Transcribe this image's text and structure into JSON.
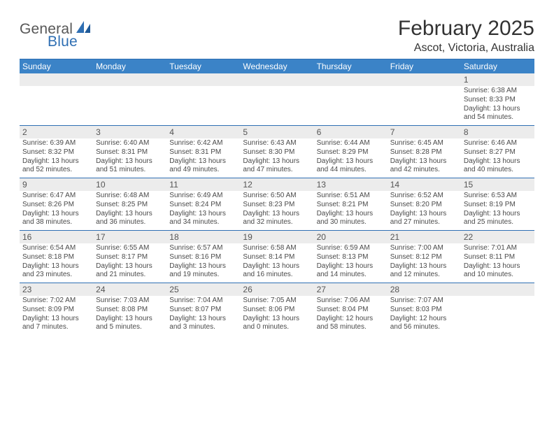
{
  "logo": {
    "top": "General",
    "bottom": "Blue"
  },
  "title": "February 2025",
  "location": "Ascot, Victoria, Australia",
  "colors": {
    "header_bg": "#3b83c7",
    "header_text": "#ffffff",
    "rule": "#2f6fb3",
    "daynum_bg": "#ececec",
    "daynum_text": "#555555",
    "body_text": "#4a4a4a",
    "page_bg": "#ffffff",
    "logo_gray": "#575757",
    "logo_blue": "#2f6fb3"
  },
  "day_headers": [
    "Sunday",
    "Monday",
    "Tuesday",
    "Wednesday",
    "Thursday",
    "Friday",
    "Saturday"
  ],
  "weeks": [
    {
      "nums": [
        "",
        "",
        "",
        "",
        "",
        "",
        "1"
      ],
      "cells": [
        [],
        [],
        [],
        [],
        [],
        [],
        [
          "Sunrise: 6:38 AM",
          "Sunset: 8:33 PM",
          "Daylight: 13 hours",
          "and 54 minutes."
        ]
      ]
    },
    {
      "nums": [
        "2",
        "3",
        "4",
        "5",
        "6",
        "7",
        "8"
      ],
      "cells": [
        [
          "Sunrise: 6:39 AM",
          "Sunset: 8:32 PM",
          "Daylight: 13 hours",
          "and 52 minutes."
        ],
        [
          "Sunrise: 6:40 AM",
          "Sunset: 8:31 PM",
          "Daylight: 13 hours",
          "and 51 minutes."
        ],
        [
          "Sunrise: 6:42 AM",
          "Sunset: 8:31 PM",
          "Daylight: 13 hours",
          "and 49 minutes."
        ],
        [
          "Sunrise: 6:43 AM",
          "Sunset: 8:30 PM",
          "Daylight: 13 hours",
          "and 47 minutes."
        ],
        [
          "Sunrise: 6:44 AM",
          "Sunset: 8:29 PM",
          "Daylight: 13 hours",
          "and 44 minutes."
        ],
        [
          "Sunrise: 6:45 AM",
          "Sunset: 8:28 PM",
          "Daylight: 13 hours",
          "and 42 minutes."
        ],
        [
          "Sunrise: 6:46 AM",
          "Sunset: 8:27 PM",
          "Daylight: 13 hours",
          "and 40 minutes."
        ]
      ]
    },
    {
      "nums": [
        "9",
        "10",
        "11",
        "12",
        "13",
        "14",
        "15"
      ],
      "cells": [
        [
          "Sunrise: 6:47 AM",
          "Sunset: 8:26 PM",
          "Daylight: 13 hours",
          "and 38 minutes."
        ],
        [
          "Sunrise: 6:48 AM",
          "Sunset: 8:25 PM",
          "Daylight: 13 hours",
          "and 36 minutes."
        ],
        [
          "Sunrise: 6:49 AM",
          "Sunset: 8:24 PM",
          "Daylight: 13 hours",
          "and 34 minutes."
        ],
        [
          "Sunrise: 6:50 AM",
          "Sunset: 8:23 PM",
          "Daylight: 13 hours",
          "and 32 minutes."
        ],
        [
          "Sunrise: 6:51 AM",
          "Sunset: 8:21 PM",
          "Daylight: 13 hours",
          "and 30 minutes."
        ],
        [
          "Sunrise: 6:52 AM",
          "Sunset: 8:20 PM",
          "Daylight: 13 hours",
          "and 27 minutes."
        ],
        [
          "Sunrise: 6:53 AM",
          "Sunset: 8:19 PM",
          "Daylight: 13 hours",
          "and 25 minutes."
        ]
      ]
    },
    {
      "nums": [
        "16",
        "17",
        "18",
        "19",
        "20",
        "21",
        "22"
      ],
      "cells": [
        [
          "Sunrise: 6:54 AM",
          "Sunset: 8:18 PM",
          "Daylight: 13 hours",
          "and 23 minutes."
        ],
        [
          "Sunrise: 6:55 AM",
          "Sunset: 8:17 PM",
          "Daylight: 13 hours",
          "and 21 minutes."
        ],
        [
          "Sunrise: 6:57 AM",
          "Sunset: 8:16 PM",
          "Daylight: 13 hours",
          "and 19 minutes."
        ],
        [
          "Sunrise: 6:58 AM",
          "Sunset: 8:14 PM",
          "Daylight: 13 hours",
          "and 16 minutes."
        ],
        [
          "Sunrise: 6:59 AM",
          "Sunset: 8:13 PM",
          "Daylight: 13 hours",
          "and 14 minutes."
        ],
        [
          "Sunrise: 7:00 AM",
          "Sunset: 8:12 PM",
          "Daylight: 13 hours",
          "and 12 minutes."
        ],
        [
          "Sunrise: 7:01 AM",
          "Sunset: 8:11 PM",
          "Daylight: 13 hours",
          "and 10 minutes."
        ]
      ]
    },
    {
      "nums": [
        "23",
        "24",
        "25",
        "26",
        "27",
        "28",
        ""
      ],
      "cells": [
        [
          "Sunrise: 7:02 AM",
          "Sunset: 8:09 PM",
          "Daylight: 13 hours",
          "and 7 minutes."
        ],
        [
          "Sunrise: 7:03 AM",
          "Sunset: 8:08 PM",
          "Daylight: 13 hours",
          "and 5 minutes."
        ],
        [
          "Sunrise: 7:04 AM",
          "Sunset: 8:07 PM",
          "Daylight: 13 hours",
          "and 3 minutes."
        ],
        [
          "Sunrise: 7:05 AM",
          "Sunset: 8:06 PM",
          "Daylight: 13 hours",
          "and 0 minutes."
        ],
        [
          "Sunrise: 7:06 AM",
          "Sunset: 8:04 PM",
          "Daylight: 12 hours",
          "and 58 minutes."
        ],
        [
          "Sunrise: 7:07 AM",
          "Sunset: 8:03 PM",
          "Daylight: 12 hours",
          "and 56 minutes."
        ],
        []
      ]
    }
  ]
}
